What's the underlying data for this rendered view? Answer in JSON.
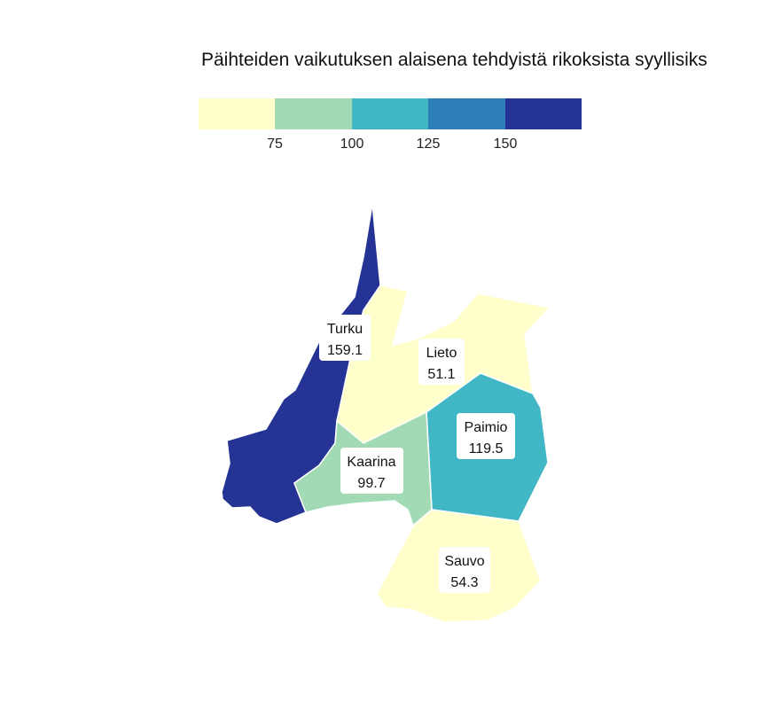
{
  "title": "Päihteiden vaikutuksen alaisena tehdyistä rikoksista syyllisiks",
  "legend": {
    "colors": [
      "#ffffcc",
      "#a1dab4",
      "#41b6c4",
      "#2c7fb8",
      "#253494"
    ],
    "ticks": [
      "75",
      "100",
      "125",
      "150"
    ]
  },
  "regions": [
    {
      "name": "Turku",
      "value": "159.1",
      "color": "#253494"
    },
    {
      "name": "Lieto",
      "value": "51.1",
      "color": "#ffffcc"
    },
    {
      "name": "Paimio",
      "value": "119.5",
      "color": "#41b6c4"
    },
    {
      "name": "Kaarina",
      "value": "99.7",
      "color": "#a1dab4"
    },
    {
      "name": "Sauvo",
      "value": "54.3",
      "color": "#ffffcc"
    }
  ]
}
